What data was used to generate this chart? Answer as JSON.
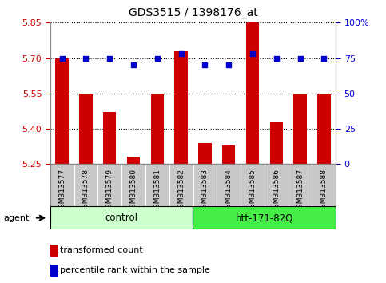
{
  "title": "GDS3515 / 1398176_at",
  "samples": [
    "GSM313577",
    "GSM313578",
    "GSM313579",
    "GSM313580",
    "GSM313581",
    "GSM313582",
    "GSM313583",
    "GSM313584",
    "GSM313585",
    "GSM313586",
    "GSM313587",
    "GSM313588"
  ],
  "bar_values": [
    5.7,
    5.55,
    5.47,
    5.28,
    5.55,
    5.73,
    5.34,
    5.33,
    5.85,
    5.43,
    5.55,
    5.55
  ],
  "percentile_values": [
    75,
    75,
    75,
    70,
    75,
    78,
    70,
    70,
    78,
    75,
    75,
    75
  ],
  "ymin": 5.25,
  "ymax": 5.85,
  "yticks": [
    5.25,
    5.4,
    5.55,
    5.7,
    5.85
  ],
  "right_yticks": [
    0,
    25,
    50,
    75,
    100
  ],
  "bar_color": "#cc0000",
  "dot_color": "#0000cc",
  "bg_color": "#ffffff",
  "plot_bg_color": "#ffffff",
  "grid_color": "#000000",
  "left_tick_color": "#cc0000",
  "right_tick_color": "#0000cc",
  "control_color": "#ccffcc",
  "htt_color": "#44ee44",
  "gray_box_color": "#c8c8c8",
  "legend_items": [
    {
      "color": "#cc0000",
      "label": "transformed count"
    },
    {
      "color": "#0000cc",
      "label": "percentile rank within the sample"
    }
  ]
}
